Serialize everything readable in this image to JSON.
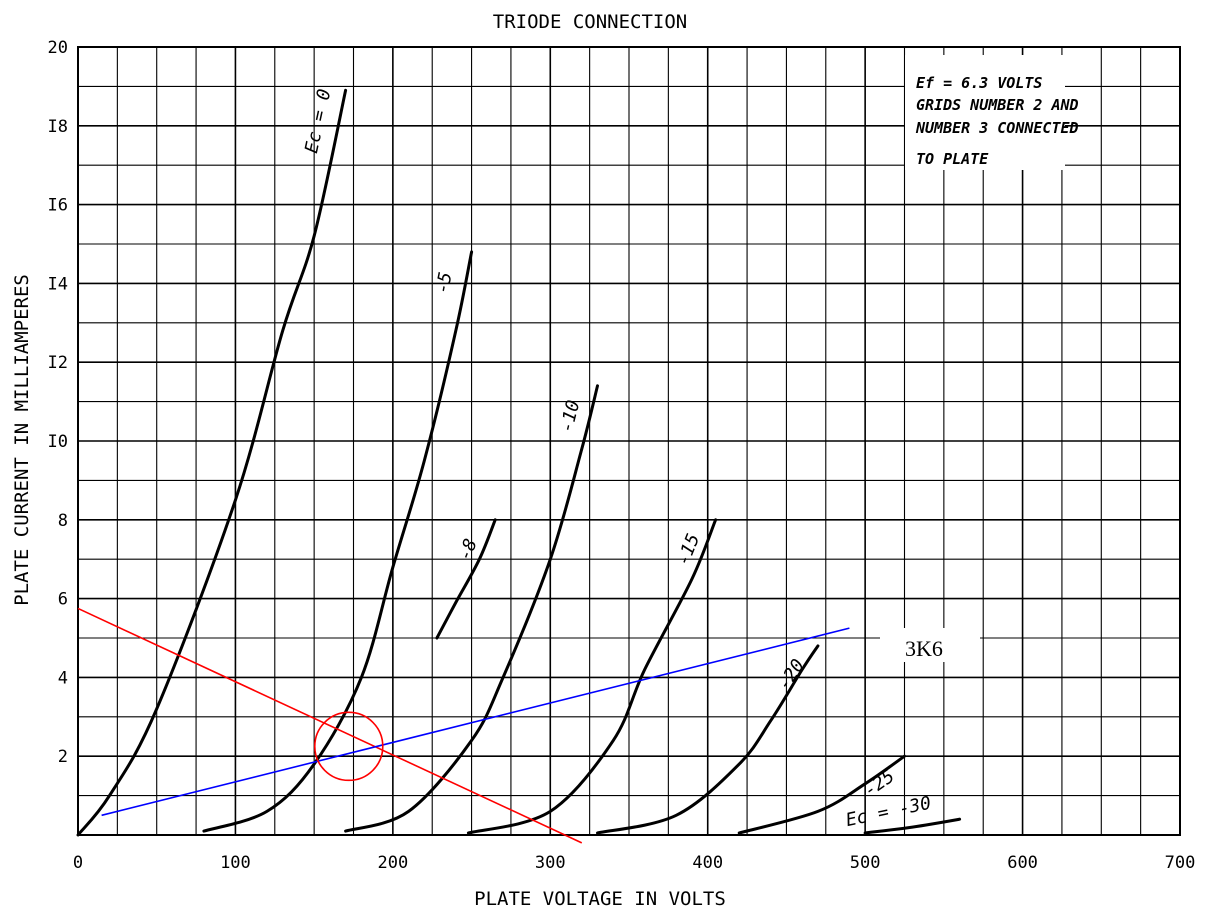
{
  "chart_data": {
    "type": "line",
    "title": "TRIODE CONNECTION",
    "xlabel": "PLATE VOLTAGE IN VOLTS",
    "ylabel": "PLATE CURRENT IN MILLIAMPERES",
    "xlim": [
      0,
      700
    ],
    "ylim": [
      0,
      20
    ],
    "grid": true,
    "x_ticks": [
      0,
      100,
      200,
      300,
      400,
      500,
      600,
      700
    ],
    "y_ticks": [
      2,
      4,
      6,
      8,
      10,
      12,
      14,
      16,
      18,
      20
    ],
    "y_tick_labels": [
      "2",
      "4",
      "6",
      "8",
      "I0",
      "I2",
      "I4",
      "I6",
      "I8",
      "20"
    ],
    "note_lines": [
      "Ef = 6.3 VOLTS",
      "GRIDS NUMBER 2 AND",
      "NUMBER 3 CONNECTED",
      "TO PLATE"
    ],
    "series": [
      {
        "name": "Ec = 0",
        "label": "Ec = 0",
        "color": "#000000",
        "x": [
          0,
          20,
          50,
          100,
          130,
          150,
          170
        ],
        "y": [
          0,
          1.0,
          3.2,
          8.5,
          12.8,
          15.2,
          18.9
        ]
      },
      {
        "name": "-5",
        "label": "-5",
        "color": "#000000",
        "x": [
          80,
          120,
          150,
          180,
          200,
          220,
          240,
          250
        ],
        "y": [
          0.1,
          0.6,
          1.8,
          4.0,
          6.8,
          9.5,
          12.8,
          14.8
        ]
      },
      {
        "name": "-8",
        "label": "-8",
        "color": "#000000",
        "x": [
          228,
          240,
          255,
          265
        ],
        "y": [
          5.0,
          5.9,
          7.0,
          8.0
        ]
      },
      {
        "name": "-10",
        "label": "-10",
        "color": "#000000",
        "x": [
          170,
          210,
          250,
          270,
          300,
          320,
          330
        ],
        "y": [
          0.1,
          0.6,
          2.4,
          4.0,
          7.0,
          9.8,
          11.4
        ]
      },
      {
        "name": "-15",
        "label": "-15",
        "color": "#000000",
        "x": [
          248,
          300,
          340,
          360,
          390,
          405
        ],
        "y": [
          0.05,
          0.6,
          2.4,
          4.2,
          6.5,
          8.0
        ]
      },
      {
        "name": "-20",
        "label": "-20",
        "color": "#000000",
        "x": [
          330,
          380,
          420,
          440,
          460,
          470
        ],
        "y": [
          0.05,
          0.5,
          1.8,
          2.9,
          4.2,
          4.8
        ]
      },
      {
        "name": "-25",
        "label": "-25",
        "color": "#000000",
        "x": [
          420,
          470,
          500,
          525
        ],
        "y": [
          0.05,
          0.6,
          1.3,
          2.0
        ]
      },
      {
        "name": "Ec = -30",
        "label": "Ec = -30",
        "color": "#000000",
        "x": [
          500,
          530,
          560
        ],
        "y": [
          0.05,
          0.2,
          0.4
        ]
      }
    ],
    "overlays": [
      {
        "name": "load-line",
        "color": "#ff0000",
        "x": [
          0,
          320
        ],
        "y": [
          5.75,
          -0.2
        ]
      },
      {
        "name": "3K6",
        "label": "3K6",
        "color": "#0000ff",
        "x": [
          15,
          490
        ],
        "y": [
          0.5,
          5.25
        ]
      }
    ],
    "operating_point": {
      "x": 172,
      "y": 2.25,
      "color": "#ff0000"
    },
    "annotation": {
      "text": "3K6"
    }
  }
}
